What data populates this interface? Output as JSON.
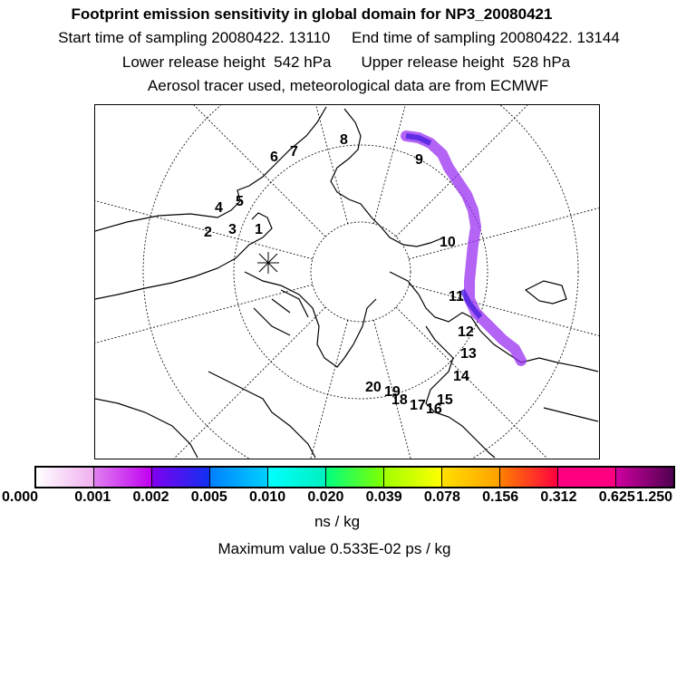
{
  "header": {
    "title": "Footprint emission sensitivity in global domain for NP3_20080421",
    "start_label": "Start time of sampling 20080422. 13110",
    "end_label": "End time of sampling 20080422. 13144",
    "lower_label": "Lower release height  542 hPa",
    "upper_label": "Upper release height  528 hPa",
    "tracer_label": "Aerosol tracer used, meteorological data are from ECMWF"
  },
  "map": {
    "projection": "north-polar-stereographic",
    "day_labels": [
      "1",
      "2",
      "3",
      "4",
      "5",
      "6",
      "7",
      "8",
      "9",
      "10",
      "11",
      "12",
      "13",
      "14",
      "15",
      "16",
      "17",
      "18",
      "19",
      "20"
    ],
    "plume_color": "#8a2be2"
  },
  "colorbar": {
    "ticks": [
      "0.000",
      "0.001",
      "0.002",
      "0.005",
      "0.010",
      "0.020",
      "0.039",
      "0.078",
      "0.156",
      "0.312",
      "0.625",
      "1.250"
    ],
    "segments": [
      [
        "#ffffff",
        "#f0b0f0"
      ],
      [
        "#e080f0",
        "#c000f0"
      ],
      [
        "#8000f0",
        "#1030f0"
      ],
      [
        "#0080ff",
        "#00d0ff"
      ],
      [
        "#00ffff",
        "#00f0c0"
      ],
      [
        "#00ff80",
        "#80ff00"
      ],
      [
        "#a0ff00",
        "#ffff00"
      ],
      [
        "#ffe000",
        "#ffa000"
      ],
      [
        "#ff8000",
        "#ff0040"
      ],
      [
        "#ff0080",
        "#ff0080"
      ],
      [
        "#d000a0",
        "#500050"
      ]
    ],
    "unit": "ns / kg",
    "max_value_label": "Maximum value  0.533E-02 ps / kg"
  }
}
